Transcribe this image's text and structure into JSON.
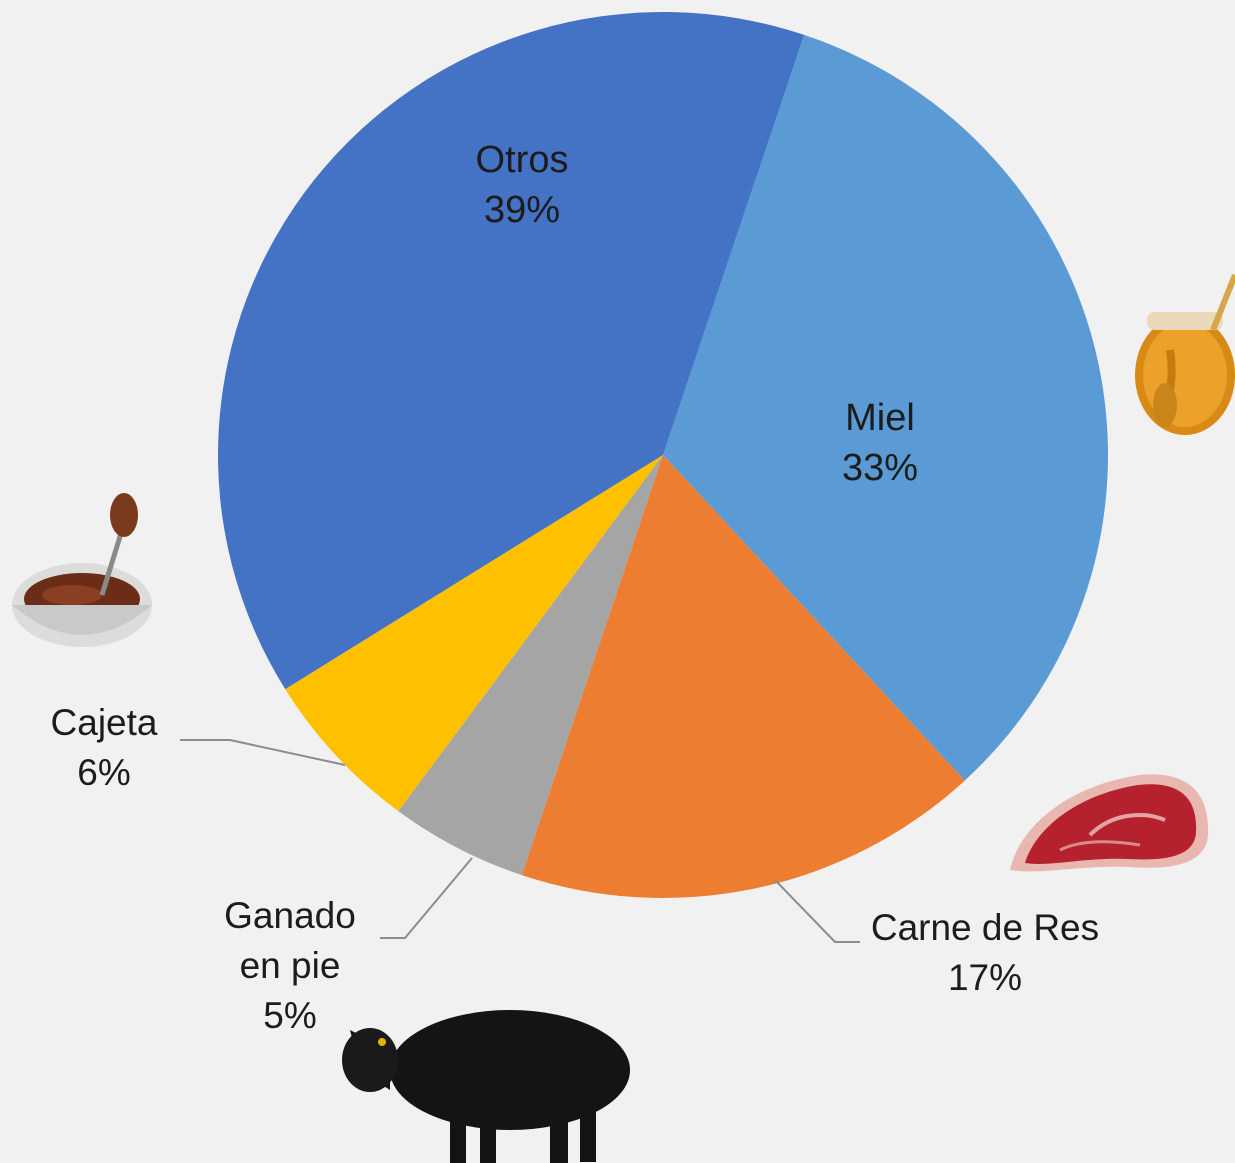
{
  "chart_data": {
    "type": "pie",
    "title": "",
    "slices": [
      {
        "label": "Miel",
        "value": 33,
        "display": "33%",
        "color": "#5b9bd5"
      },
      {
        "label": "Carne de Res",
        "value": 17,
        "display": "17%",
        "color": "#ed7d31"
      },
      {
        "label": "Ganado en pie",
        "value": 5,
        "display": "5%",
        "color": "#a5a5a5"
      },
      {
        "label": "Cajeta",
        "value": 6,
        "display": "6%",
        "color": "#ffc000"
      },
      {
        "label": "Otros",
        "value": 39,
        "display": "39%",
        "color": "#4472c4"
      }
    ],
    "legend": "none",
    "label_placement": "inside for Otros and Miel; outside with leader lines for Carne de Res, Ganado en pie and Cajeta"
  },
  "pictures": [
    {
      "name": "honey-jar-icon",
      "slice": "Miel"
    },
    {
      "name": "beef-steak-icon",
      "slice": "Carne de Res"
    },
    {
      "name": "cattle-icon",
      "slice": "Ganado en pie"
    },
    {
      "name": "cajeta-bowl-icon",
      "slice": "Cajeta"
    }
  ]
}
